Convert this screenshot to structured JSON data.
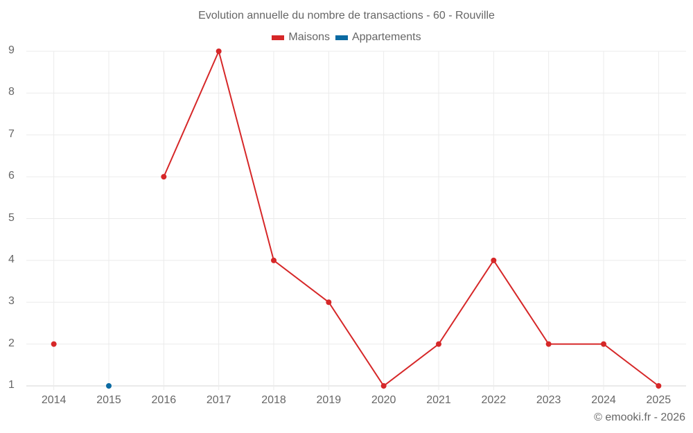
{
  "chart": {
    "title": "Evolution annuelle du nombre de transactions - 60 - Rouville",
    "credit": "© emooki.fr - 2026",
    "legend": [
      {
        "label": "Maisons",
        "color": "#d62728"
      },
      {
        "label": "Appartements",
        "color": "#0b6aa2"
      }
    ],
    "y_ticks": [
      "9",
      "8",
      "7",
      "6",
      "5",
      "4",
      "3",
      "2",
      "1"
    ],
    "x_ticks": [
      "2014",
      "2015",
      "2016",
      "2017",
      "2018",
      "2019",
      "2020",
      "2021",
      "2022",
      "2023",
      "2024",
      "2025"
    ]
  },
  "chart_data": {
    "type": "line",
    "title": "Evolution annuelle du nombre de transactions - 60 - Rouville",
    "xlabel": "",
    "ylabel": "",
    "categories": [
      "2014",
      "2015",
      "2016",
      "2017",
      "2018",
      "2019",
      "2020",
      "2021",
      "2022",
      "2023",
      "2024",
      "2025"
    ],
    "series": [
      {
        "name": "Maisons",
        "color": "#d62728",
        "values": [
          2,
          null,
          6,
          9,
          4,
          3,
          1,
          2,
          4,
          2,
          2,
          1
        ]
      },
      {
        "name": "Appartements",
        "color": "#0b6aa2",
        "values": [
          null,
          1,
          null,
          null,
          null,
          null,
          null,
          null,
          null,
          null,
          null,
          null
        ]
      }
    ],
    "ylim": [
      1,
      9
    ],
    "grid": true,
    "legend_position": "top"
  }
}
